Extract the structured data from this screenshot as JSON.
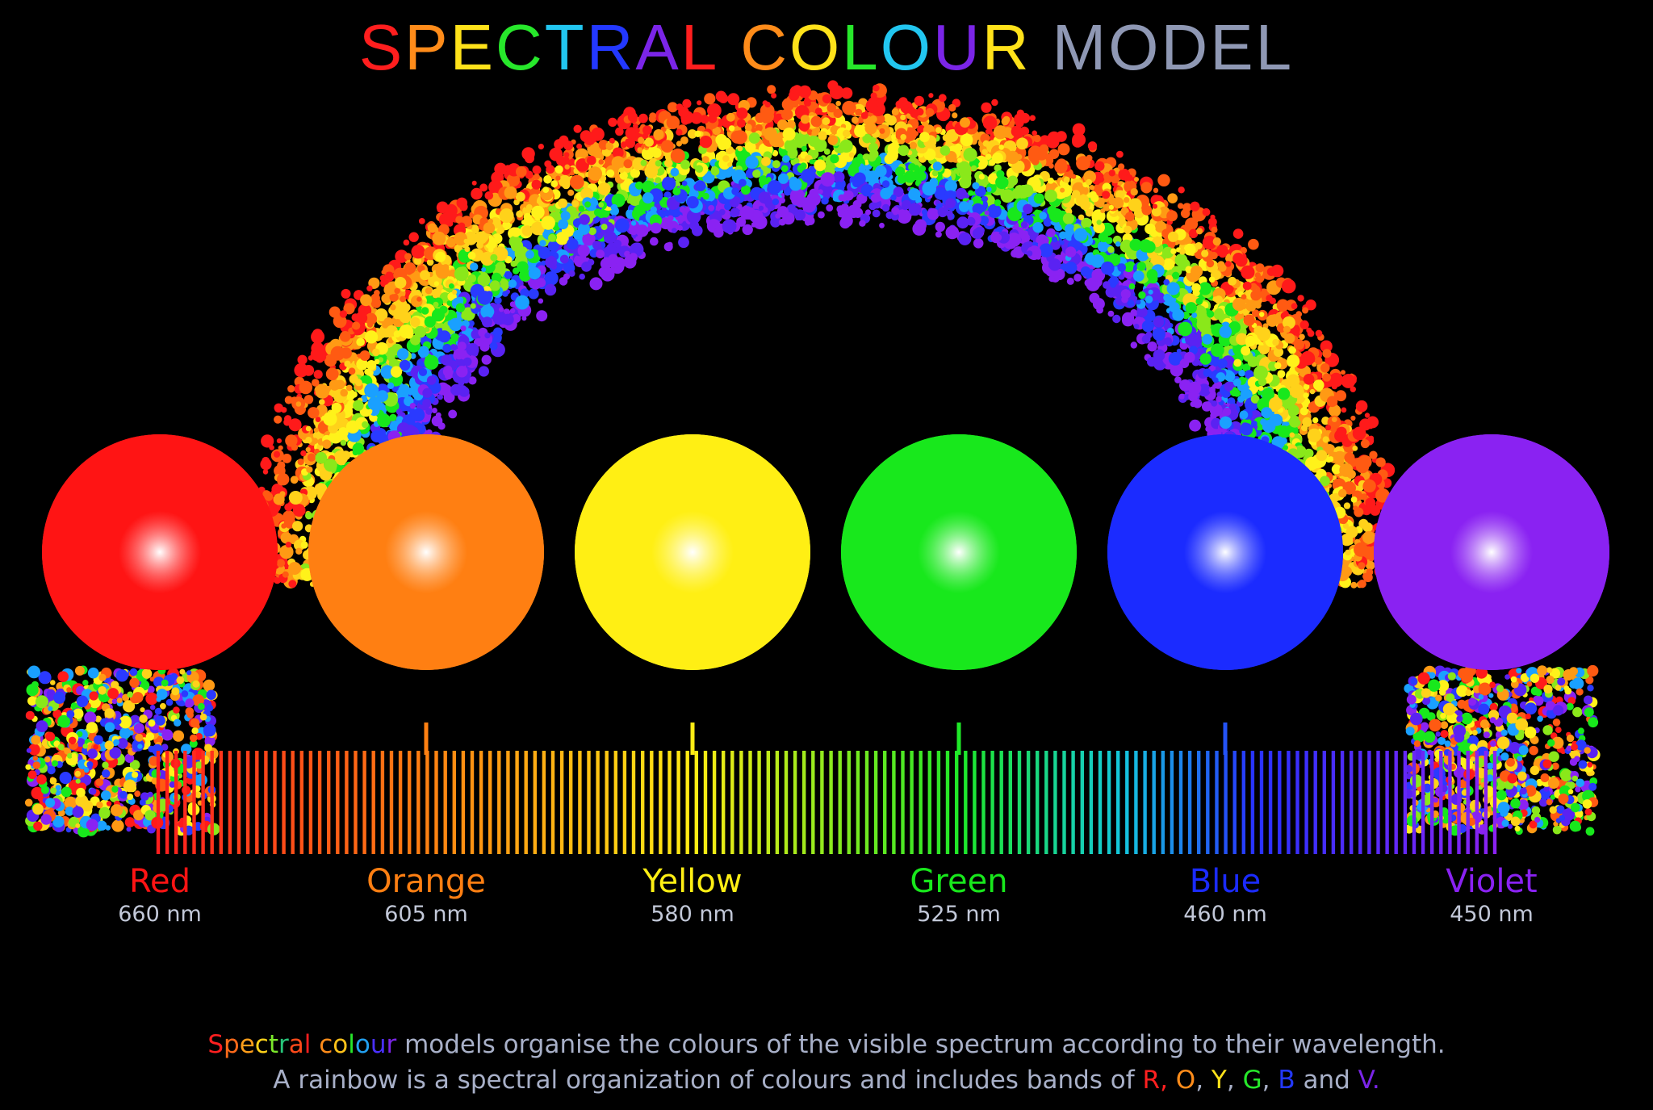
{
  "title": {
    "chars": [
      {
        "t": "S",
        "c": "#ff1e1e"
      },
      {
        "t": "P",
        "c": "#ff8c1a"
      },
      {
        "t": "E",
        "c": "#ffe21a"
      },
      {
        "t": "C",
        "c": "#27e82b"
      },
      {
        "t": "T",
        "c": "#22c6f0"
      },
      {
        "t": "R",
        "c": "#2338ff"
      },
      {
        "t": "A",
        "c": "#7b25e8"
      },
      {
        "t": "L",
        "c": "#ff1e1e"
      },
      {
        "t": " ",
        "c": "#000000"
      },
      {
        "t": "C",
        "c": "#ff8c1a"
      },
      {
        "t": "O",
        "c": "#ffe21a"
      },
      {
        "t": "L",
        "c": "#27e82b"
      },
      {
        "t": "O",
        "c": "#22c6f0"
      },
      {
        "t": "U",
        "c": "#7b25e8"
      },
      {
        "t": "R",
        "c": "#ffe21a"
      },
      {
        "t": " ",
        "c": "#000000"
      },
      {
        "t": "M",
        "c": "#8f98b4"
      },
      {
        "t": "O",
        "c": "#8f98b4"
      },
      {
        "t": "D",
        "c": "#8f98b4"
      },
      {
        "t": "E",
        "c": "#8f98b4"
      },
      {
        "t": "L",
        "c": "#8f98b4"
      }
    ]
  },
  "colours": [
    {
      "name": "Red",
      "wavelength": "660 nm",
      "color": "#ff1414"
    },
    {
      "name": "Orange",
      "wavelength": "605 nm",
      "color": "#ff7f12"
    },
    {
      "name": "Yellow",
      "wavelength": "580 nm",
      "color": "#ffef14"
    },
    {
      "name": "Green",
      "wavelength": "525 nm",
      "color": "#18e81c"
    },
    {
      "name": "Blue",
      "wavelength": "460 nm",
      "color": "#1b2bff"
    },
    {
      "name": "Violet",
      "wavelength": "450 nm",
      "color": "#8a22f2"
    }
  ],
  "caption": {
    "line1": [
      {
        "t": "S",
        "c": "#ff2020"
      },
      {
        "t": "p",
        "c": "#ff6a1a"
      },
      {
        "t": "e",
        "c": "#ff9e1a"
      },
      {
        "t": "c",
        "c": "#ffd21a"
      },
      {
        "t": "t",
        "c": "#7be82b"
      },
      {
        "t": "r",
        "c": "#27c67a"
      },
      {
        "t": "a",
        "c": "#ff4a1a"
      },
      {
        "t": "l",
        "c": "#ff1e1e"
      },
      {
        "t": " ",
        "c": "#a8b0c8"
      },
      {
        "t": "c",
        "c": "#ff8c1a"
      },
      {
        "t": "o",
        "c": "#ffc21a"
      },
      {
        "t": "l",
        "c": "#27e82b"
      },
      {
        "t": "o",
        "c": "#22a0f0"
      },
      {
        "t": "u",
        "c": "#4a30ff"
      },
      {
        "t": "r",
        "c": "#7b25e8"
      },
      {
        "t": " models organise the colours of the visible spectrum according to their wavelength.",
        "c": "#a8b0c8"
      }
    ],
    "line2": [
      {
        "t": "A rainbow is a spectral organization of colours and includes bands of ",
        "c": "#a8b0c8"
      },
      {
        "t": "R,",
        "c": "#ff2020"
      },
      {
        "t": " ",
        "c": "#a8b0c8"
      },
      {
        "t": "O",
        "c": "#ff8c1a"
      },
      {
        "t": ", ",
        "c": "#a8b0c8"
      },
      {
        "t": "Y",
        "c": "#ffe21a"
      },
      {
        "t": ", ",
        "c": "#a8b0c8"
      },
      {
        "t": "G",
        "c": "#27e82b"
      },
      {
        "t": ", ",
        "c": "#a8b0c8"
      },
      {
        "t": "B",
        "c": "#2338ff"
      },
      {
        "t": " and ",
        "c": "#a8b0c8"
      },
      {
        "t": "V.",
        "c": "#7b25e8"
      }
    ]
  }
}
